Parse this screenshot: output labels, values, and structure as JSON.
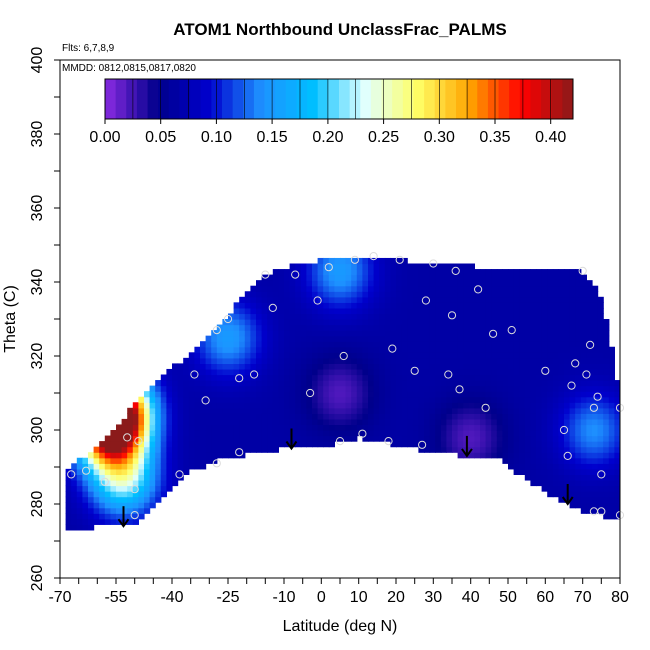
{
  "chart_data": {
    "type": "heatmap",
    "title": "ATOM1 Northbound UnclassFrac_PALMS",
    "note_flights": "Flts: 6,7,8,9",
    "note_dates": "MMDD: 0812,0815,0817,0820",
    "xlabel": "Latitude (deg N)",
    "ylabel": "Theta (C)",
    "xlim": [
      -70,
      80
    ],
    "ylim": [
      260,
      400
    ],
    "x_ticks": [
      -70,
      -55,
      -40,
      -25,
      -10,
      0,
      10,
      20,
      30,
      40,
      50,
      60,
      70,
      80
    ],
    "y_ticks": [
      260,
      280,
      300,
      320,
      340,
      360,
      380,
      400
    ],
    "colorbar": {
      "range": [
        0.0,
        0.42
      ],
      "ticks": [
        0.0,
        0.05,
        0.1,
        0.15,
        0.2,
        0.25,
        0.3,
        0.35,
        0.4
      ],
      "tick_labels": [
        "0.00",
        "0.05",
        "0.10",
        "0.15",
        "0.20",
        "0.25",
        "0.30",
        "0.35",
        "0.40"
      ],
      "colors": [
        "#8a2be2",
        "#00008b",
        "#0000cd",
        "#1e90ff",
        "#00bfff",
        "#e0ffff",
        "#ffff66",
        "#ffa500",
        "#ff0000",
        "#8b1a1a"
      ]
    },
    "profile_arrows": [
      {
        "lat": -53,
        "theta": 274
      },
      {
        "lat": -8,
        "theta": 295
      },
      {
        "lat": 39,
        "theta": 293
      },
      {
        "lat": 66,
        "theta": 280
      }
    ],
    "sample_points": [
      {
        "lat": -67,
        "theta": 288
      },
      {
        "lat": -63,
        "theta": 289
      },
      {
        "lat": -58,
        "theta": 286
      },
      {
        "lat": -52,
        "theta": 298
      },
      {
        "lat": -49,
        "theta": 297
      },
      {
        "lat": -50,
        "theta": 284
      },
      {
        "lat": -50,
        "theta": 277
      },
      {
        "lat": -38,
        "theta": 288
      },
      {
        "lat": -34,
        "theta": 315
      },
      {
        "lat": -31,
        "theta": 308
      },
      {
        "lat": -28,
        "theta": 327
      },
      {
        "lat": -25,
        "theta": 330
      },
      {
        "lat": -22,
        "theta": 314
      },
      {
        "lat": -18,
        "theta": 315
      },
      {
        "lat": -28,
        "theta": 291
      },
      {
        "lat": -22,
        "theta": 294
      },
      {
        "lat": -15,
        "theta": 342
      },
      {
        "lat": -13,
        "theta": 333
      },
      {
        "lat": -7,
        "theta": 342
      },
      {
        "lat": -3,
        "theta": 310
      },
      {
        "lat": -1,
        "theta": 335
      },
      {
        "lat": 2,
        "theta": 344
      },
      {
        "lat": 5,
        "theta": 297
      },
      {
        "lat": 6,
        "theta": 320
      },
      {
        "lat": 9,
        "theta": 346
      },
      {
        "lat": 11,
        "theta": 299
      },
      {
        "lat": 14,
        "theta": 347
      },
      {
        "lat": 18,
        "theta": 297
      },
      {
        "lat": 19,
        "theta": 322
      },
      {
        "lat": 21,
        "theta": 346
      },
      {
        "lat": 25,
        "theta": 316
      },
      {
        "lat": 27,
        "theta": 296
      },
      {
        "lat": 28,
        "theta": 335
      },
      {
        "lat": 30,
        "theta": 345
      },
      {
        "lat": 34,
        "theta": 315
      },
      {
        "lat": 35,
        "theta": 331
      },
      {
        "lat": 36,
        "theta": 343
      },
      {
        "lat": 37,
        "theta": 311
      },
      {
        "lat": 42,
        "theta": 338
      },
      {
        "lat": 44,
        "theta": 306
      },
      {
        "lat": 46,
        "theta": 326
      },
      {
        "lat": 51,
        "theta": 327
      },
      {
        "lat": 60,
        "theta": 316
      },
      {
        "lat": 65,
        "theta": 300
      },
      {
        "lat": 66,
        "theta": 293
      },
      {
        "lat": 67,
        "theta": 312
      },
      {
        "lat": 68,
        "theta": 318
      },
      {
        "lat": 70,
        "theta": 343
      },
      {
        "lat": 71,
        "theta": 315
      },
      {
        "lat": 72,
        "theta": 323
      },
      {
        "lat": 73,
        "theta": 306
      },
      {
        "lat": 74,
        "theta": 309
      },
      {
        "lat": 75,
        "theta": 288
      },
      {
        "lat": 73,
        "theta": 278
      },
      {
        "lat": 75,
        "theta": 278
      },
      {
        "lat": 80,
        "theta": 306
      },
      {
        "lat": 80,
        "theta": 277
      }
    ],
    "field_features": [
      {
        "lat": -53,
        "theta": 287,
        "value": 0.22
      },
      {
        "lat": -55,
        "theta": 305,
        "value": 0.4
      },
      {
        "lat": -57,
        "theta": 300,
        "value": 0.3
      },
      {
        "lat": -25,
        "theta": 325,
        "value": 0.15
      },
      {
        "lat": 5,
        "theta": 343,
        "value": 0.15
      },
      {
        "lat": 73,
        "theta": 300,
        "value": 0.14
      },
      {
        "lat": 5,
        "theta": 310,
        "value": 0.02
      },
      {
        "lat": 40,
        "theta": 298,
        "value": 0.02
      }
    ],
    "grid": false
  }
}
